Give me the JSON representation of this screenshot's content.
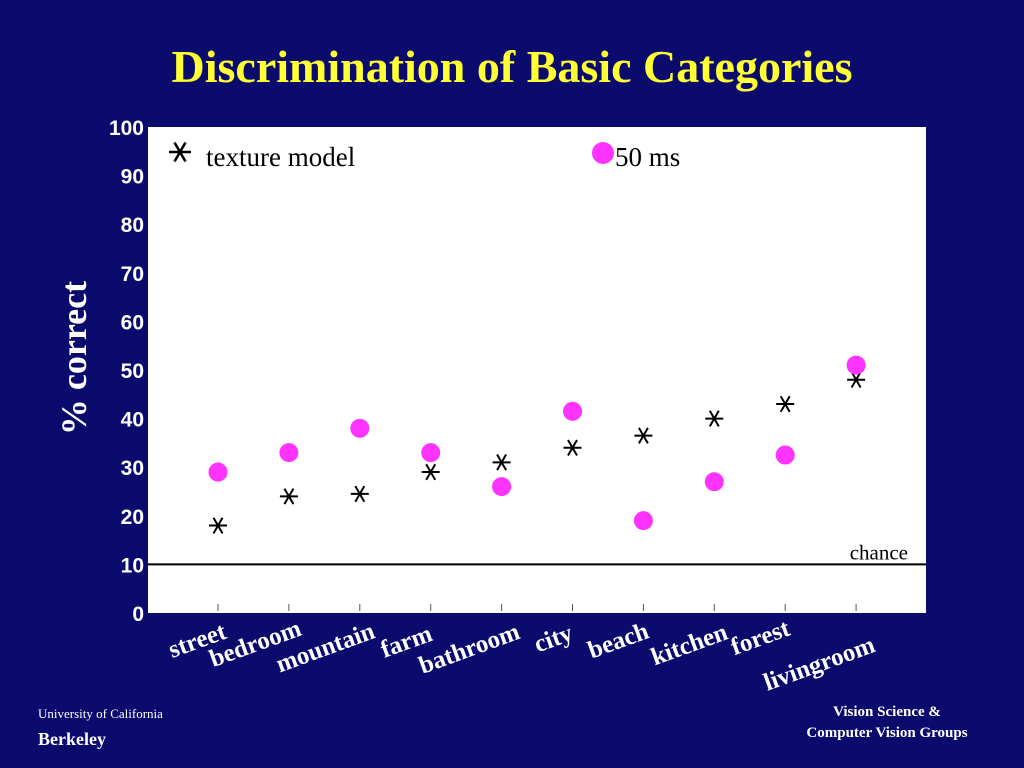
{
  "slide": {
    "title": "Discrimination of Basic Categories",
    "footer_left_line1": "University of California",
    "footer_left_line2": "Berkeley",
    "footer_right_line1": "Vision Science &",
    "footer_right_line2": "Computer Vision Groups"
  },
  "colors": {
    "background": "#0b0b6e",
    "title": "#ffff33",
    "plot_area": "#ffffff",
    "texture_marker": "#000000",
    "ms50_marker": "#ff33ff"
  },
  "chart_data": {
    "type": "scatter",
    "title": "",
    "ylabel": "% correct",
    "xlabel": "",
    "ylim": [
      0,
      100
    ],
    "yticks": [
      0,
      10,
      20,
      30,
      40,
      50,
      60,
      70,
      80,
      90,
      100
    ],
    "categories": [
      "street",
      "bedroom",
      "mountain",
      "farm",
      "bathroom",
      "city",
      "beach",
      "kitchen",
      "forest",
      "livingroom"
    ],
    "series": [
      {
        "name": "texture model",
        "marker": "asterisk",
        "values": [
          18,
          24,
          24.5,
          29,
          31,
          34,
          36.5,
          40,
          43,
          48
        ]
      },
      {
        "name": "50 ms",
        "marker": "circle",
        "values": [
          29,
          33,
          38,
          33,
          26,
          41.5,
          19,
          27,
          32.5,
          51
        ]
      }
    ],
    "reference_line": {
      "value": 10,
      "label": "chance"
    },
    "grid": false,
    "legend_position": "top"
  }
}
